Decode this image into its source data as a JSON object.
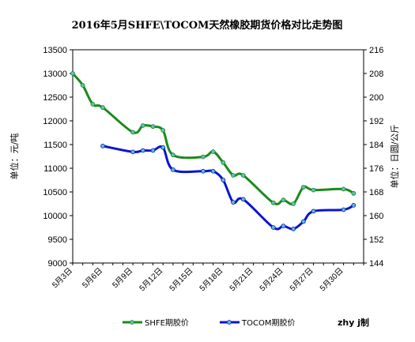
{
  "chart_data": {
    "type": "line",
    "title": "2016年5月SHFE\\TOCOM天然橡胶期货价格对比走势图",
    "ylabel_left": "单位：元/吨",
    "ylabel_right": "单位：日圆/公斤",
    "ylim_left": [
      9000,
      13500
    ],
    "yticks_left": [
      9000,
      9500,
      10000,
      10500,
      11000,
      11500,
      12000,
      12500,
      13000,
      13500
    ],
    "ylim_right": [
      144,
      216
    ],
    "yticks_right": [
      144,
      152,
      160,
      168,
      176,
      184,
      192,
      200,
      208,
      216
    ],
    "x_labels": [
      "5月3日",
      "5月6日",
      "5月9日",
      "5月12日",
      "5月15日",
      "5月18日",
      "5月21日",
      "5月24日",
      "5月27日",
      "5月30日"
    ],
    "x_label_days": [
      3,
      6,
      9,
      12,
      15,
      18,
      21,
      24,
      27,
      30
    ],
    "x_range": [
      3,
      32
    ],
    "grid": false,
    "legend_position": "bottom",
    "credit": "zhy j制",
    "series": [
      {
        "name": "SHFE期胶价",
        "axis": "left",
        "color": "#1a8a1a",
        "marker_color": "#5fbfbf",
        "points": [
          [
            3,
            13000
          ],
          [
            4,
            12750
          ],
          [
            5,
            12350
          ],
          [
            6,
            12280
          ],
          [
            9,
            11760
          ],
          [
            10,
            11900
          ],
          [
            11,
            11880
          ],
          [
            12,
            11800
          ],
          [
            13,
            11280
          ],
          [
            16,
            11240
          ],
          [
            17,
            11350
          ],
          [
            18,
            11120
          ],
          [
            19,
            10850
          ],
          [
            20,
            10850
          ],
          [
            23,
            10270
          ],
          [
            24,
            10330
          ],
          [
            25,
            10250
          ],
          [
            26,
            10600
          ],
          [
            27,
            10540
          ],
          [
            30,
            10560
          ],
          [
            31,
            10470
          ]
        ]
      },
      {
        "name": "TOCOM期胶价",
        "axis": "right",
        "color": "#0a14d2",
        "marker_color": "#5fbfbf",
        "points": [
          [
            6,
            183.5
          ],
          [
            9,
            181.5
          ],
          [
            10,
            182
          ],
          [
            11,
            182
          ],
          [
            12,
            183
          ],
          [
            13,
            175.5
          ],
          [
            16,
            175
          ],
          [
            17,
            175
          ],
          [
            18,
            172
          ],
          [
            19,
            164.5
          ],
          [
            20,
            165.5
          ],
          [
            23,
            156
          ],
          [
            24,
            156.5
          ],
          [
            25,
            155.5
          ],
          [
            26,
            158
          ],
          [
            27,
            161.5
          ],
          [
            30,
            162
          ],
          [
            31,
            163.5
          ]
        ]
      }
    ]
  }
}
